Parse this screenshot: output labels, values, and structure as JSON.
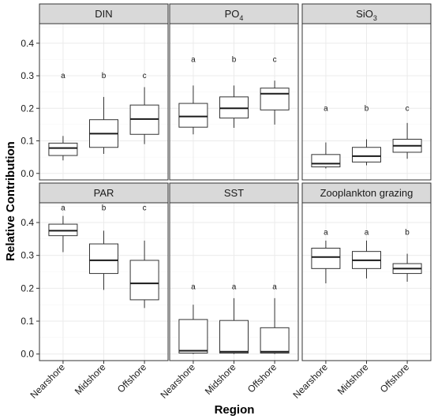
{
  "chart_data": {
    "type": "boxplot",
    "xlabel": "Region",
    "ylabel": "Relative Contribution",
    "categories": [
      "Nearshore",
      "Midshore",
      "Offshore"
    ],
    "ylim": [
      -0.02,
      0.46
    ],
    "yticks": [
      "0.0",
      "0.1",
      "0.2",
      "0.3",
      "0.4"
    ],
    "yticks_values": [
      0.0,
      0.1,
      0.2,
      0.3,
      0.4
    ],
    "grid": true,
    "panels": [
      {
        "title": "DIN",
        "title_sub": "",
        "boxes": [
          {
            "category": "Nearshore",
            "min": 0.04,
            "q1": 0.055,
            "median": 0.078,
            "q3": 0.093,
            "max": 0.115,
            "label": "a"
          },
          {
            "category": "Midshore",
            "min": 0.06,
            "q1": 0.08,
            "median": 0.122,
            "q3": 0.165,
            "max": 0.235,
            "label": "b"
          },
          {
            "category": "Offshore",
            "min": 0.09,
            "q1": 0.12,
            "median": 0.167,
            "q3": 0.21,
            "max": 0.265,
            "label": "c"
          }
        ],
        "label_y": 0.3
      },
      {
        "title": "PO",
        "title_sub": "4",
        "boxes": [
          {
            "category": "Nearshore",
            "min": 0.12,
            "q1": 0.142,
            "median": 0.175,
            "q3": 0.215,
            "max": 0.27,
            "label": "a"
          },
          {
            "category": "Midshore",
            "min": 0.14,
            "q1": 0.17,
            "median": 0.2,
            "q3": 0.235,
            "max": 0.27,
            "label": "b"
          },
          {
            "category": "Offshore",
            "min": 0.15,
            "q1": 0.195,
            "median": 0.245,
            "q3": 0.262,
            "max": 0.285,
            "label": "c"
          }
        ],
        "label_y": 0.35
      },
      {
        "title": "SiO",
        "title_sub": "3",
        "boxes": [
          {
            "category": "Nearshore",
            "min": 0.015,
            "q1": 0.02,
            "median": 0.03,
            "q3": 0.058,
            "max": 0.095,
            "label": "a"
          },
          {
            "category": "Midshore",
            "min": 0.025,
            "q1": 0.035,
            "median": 0.053,
            "q3": 0.08,
            "max": 0.105,
            "label": "b"
          },
          {
            "category": "Offshore",
            "min": 0.045,
            "q1": 0.065,
            "median": 0.085,
            "q3": 0.105,
            "max": 0.155,
            "label": "c"
          }
        ],
        "label_y": 0.2
      },
      {
        "title": "PAR",
        "title_sub": "",
        "boxes": [
          {
            "category": "Nearshore",
            "min": 0.31,
            "q1": 0.36,
            "median": 0.375,
            "q3": 0.395,
            "max": 0.42,
            "label": "a"
          },
          {
            "category": "Midshore",
            "min": 0.195,
            "q1": 0.245,
            "median": 0.285,
            "q3": 0.335,
            "max": 0.375,
            "label": "b"
          },
          {
            "category": "Offshore",
            "min": 0.14,
            "q1": 0.165,
            "median": 0.215,
            "q3": 0.285,
            "max": 0.345,
            "label": "c"
          }
        ],
        "label_y": 0.445
      },
      {
        "title": "SST",
        "title_sub": "",
        "boxes": [
          {
            "category": "Nearshore",
            "min": 0.0,
            "q1": 0.003,
            "median": 0.01,
            "q3": 0.105,
            "max": 0.15,
            "label": "a"
          },
          {
            "category": "Midshore",
            "min": 0.0,
            "q1": 0.003,
            "median": 0.007,
            "q3": 0.102,
            "max": 0.17,
            "label": "a"
          },
          {
            "category": "Offshore",
            "min": 0.0,
            "q1": 0.003,
            "median": 0.007,
            "q3": 0.08,
            "max": 0.17,
            "label": "a"
          }
        ],
        "label_y": 0.205
      },
      {
        "title": "Zooplankton grazing",
        "title_sub": "",
        "boxes": [
          {
            "category": "Nearshore",
            "min": 0.215,
            "q1": 0.26,
            "median": 0.295,
            "q3": 0.322,
            "max": 0.345,
            "label": "a"
          },
          {
            "category": "Midshore",
            "min": 0.23,
            "q1": 0.26,
            "median": 0.285,
            "q3": 0.312,
            "max": 0.345,
            "label": "a"
          },
          {
            "category": "Offshore",
            "min": 0.22,
            "q1": 0.245,
            "median": 0.26,
            "q3": 0.275,
            "max": 0.305,
            "label": "b"
          }
        ],
        "label_y": 0.37
      }
    ]
  }
}
